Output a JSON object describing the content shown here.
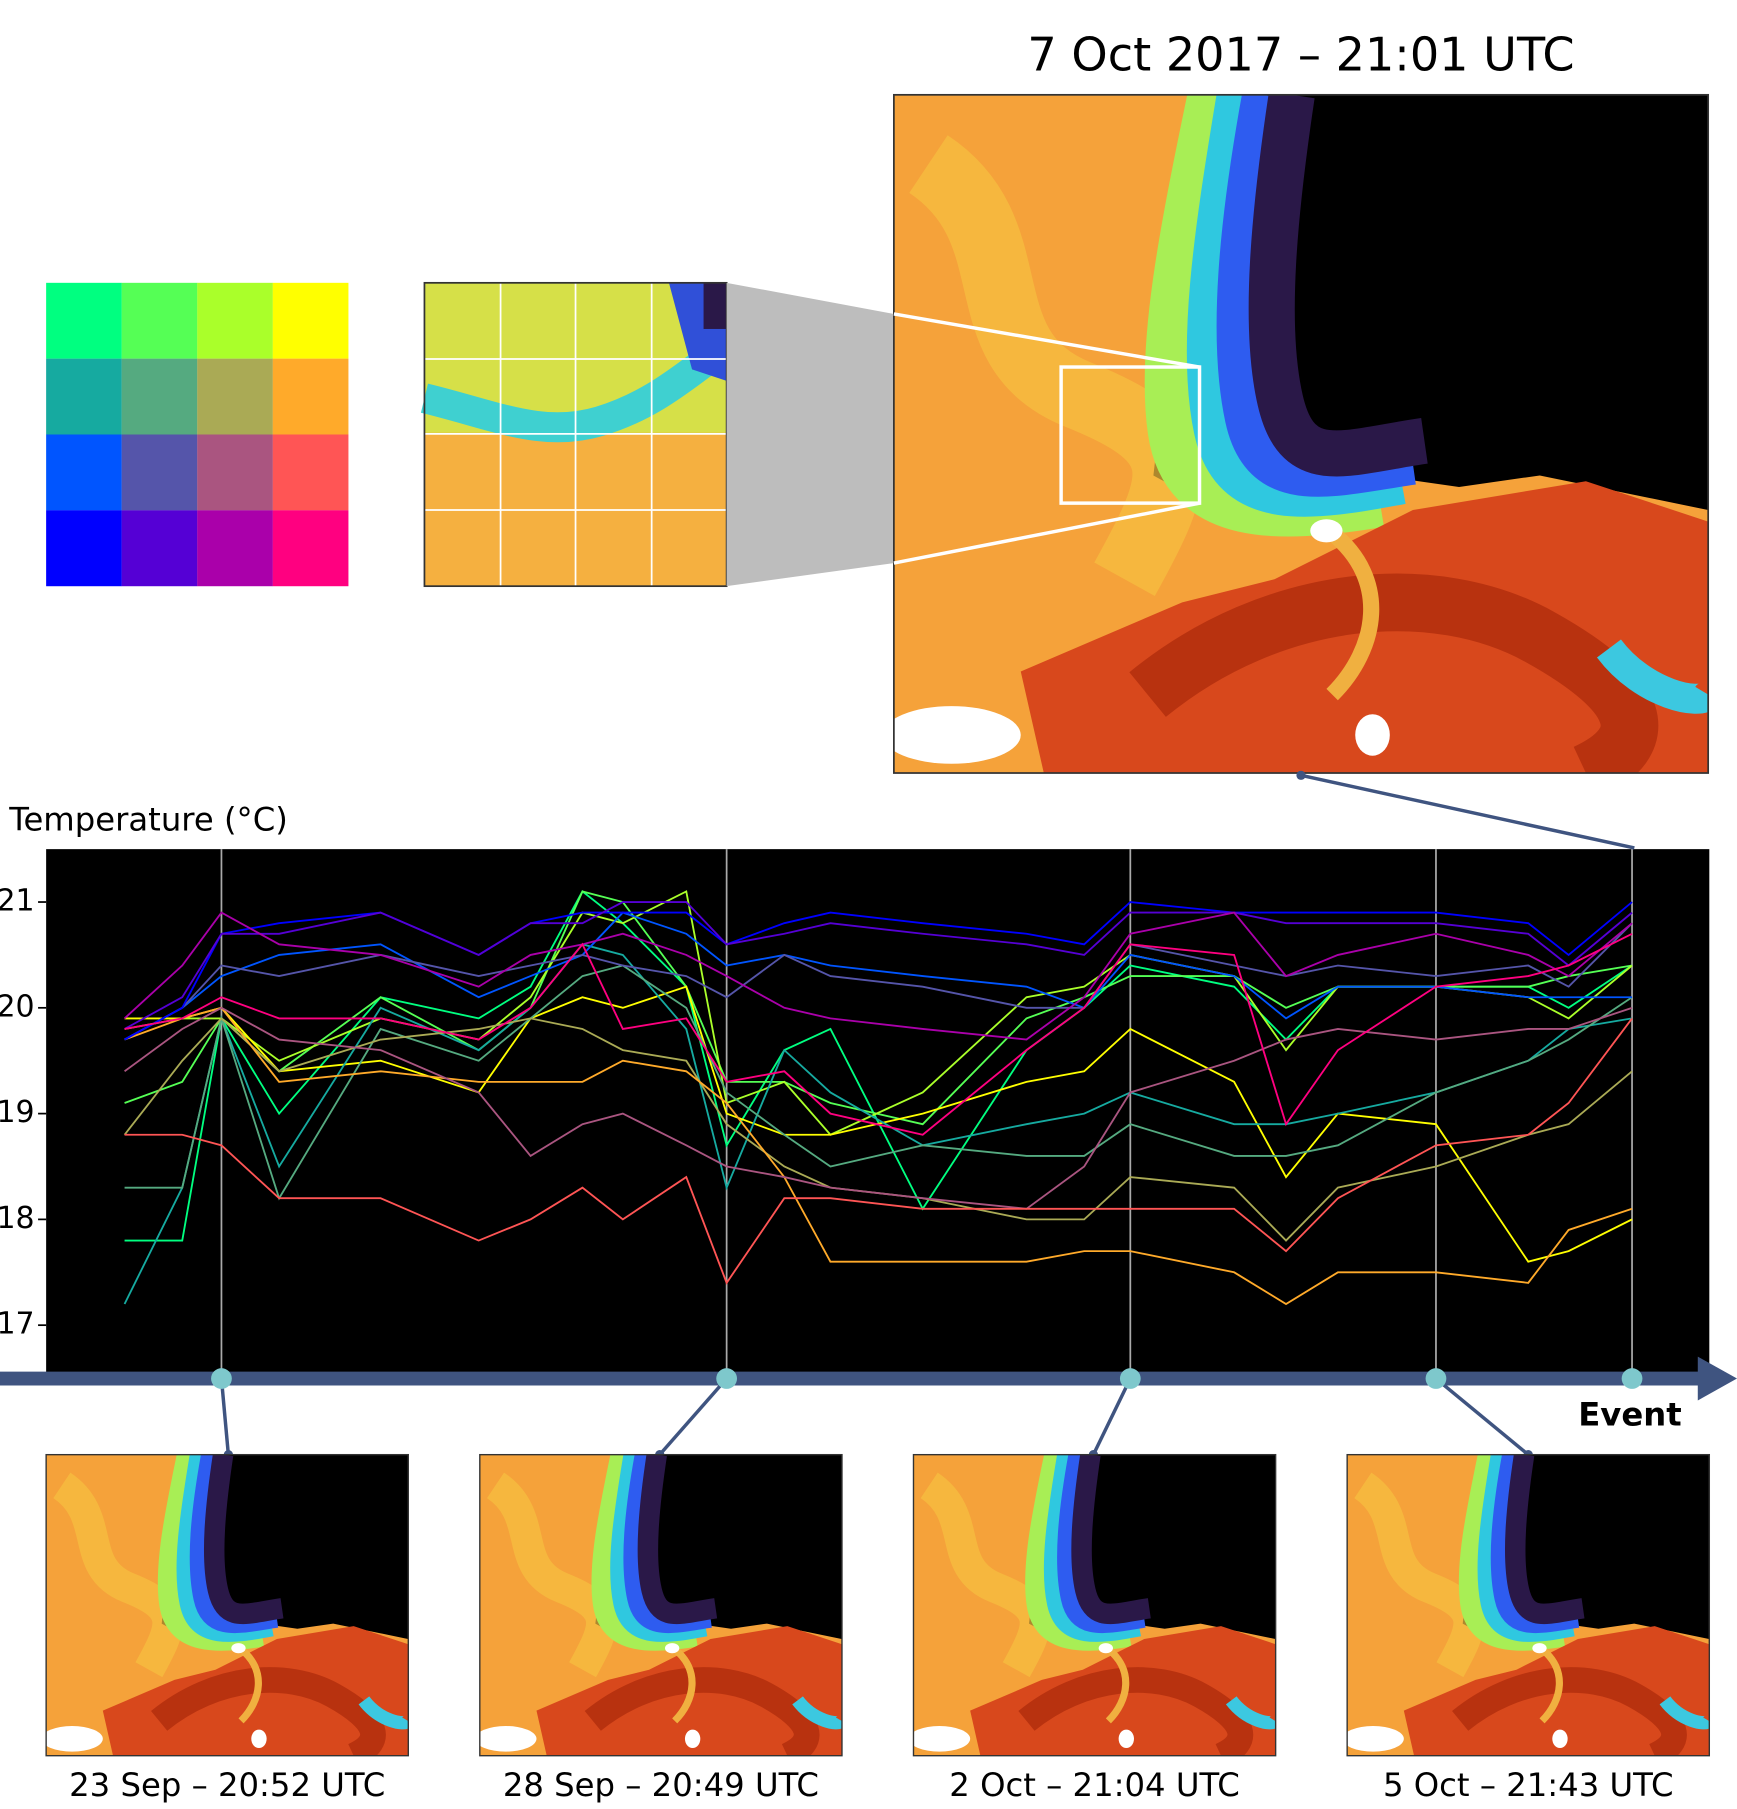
{
  "main_map": {
    "title": "7 Oct 2017 – 21:01 UTC"
  },
  "thumbnails": [
    {
      "label": "23 Sep – 20:52 UTC"
    },
    {
      "label": "28 Sep – 20:49 UTC"
    },
    {
      "label": "2 Oct – 21:04 UTC"
    },
    {
      "label": "5 Oct – 21:43 UTC"
    }
  ],
  "chart_data": {
    "type": "line",
    "y_label": "Temperature (°C)",
    "x_label": "Event",
    "ylim": [
      16.55,
      21.5
    ],
    "yticks": [
      17,
      18,
      19,
      20,
      21
    ],
    "grid": false,
    "categories": [
      null,
      null,
      null,
      null,
      null,
      null,
      null,
      null,
      null,
      null,
      null,
      null,
      null,
      null,
      null,
      null,
      null,
      null,
      null,
      null,
      null,
      null,
      null,
      null
    ],
    "series": [
      {
        "color": "#00ff80",
        "values": [
          17.8,
          17.8,
          19.9,
          19.0,
          20.1,
          19.9,
          20.2,
          21.1,
          20.8,
          20.2,
          18.7,
          19.6,
          19.8,
          18.1,
          19.6,
          20.0,
          20.4,
          20.2,
          19.7,
          20.2,
          20.2,
          20.2,
          20.0,
          20.4
        ]
      },
      {
        "color": "#55ff55",
        "values": [
          19.1,
          19.3,
          19.9,
          19.4,
          20.1,
          19.6,
          20.0,
          21.1,
          21.0,
          20.2,
          19.3,
          19.3,
          19.1,
          18.9,
          19.9,
          20.1,
          20.3,
          20.3,
          20.0,
          20.2,
          20.2,
          20.2,
          20.3,
          20.4
        ]
      },
      {
        "color": "#aaff2a",
        "values": [
          19.8,
          19.9,
          19.9,
          19.5,
          19.9,
          19.7,
          20.1,
          20.9,
          20.8,
          21.1,
          19.1,
          19.3,
          18.8,
          19.2,
          20.1,
          20.2,
          20.5,
          20.3,
          19.6,
          20.2,
          20.2,
          20.1,
          19.9,
          20.4
        ]
      },
      {
        "color": "#ffff00",
        "values": [
          19.9,
          19.9,
          20.0,
          19.4,
          19.5,
          19.2,
          19.9,
          20.1,
          20.0,
          20.2,
          19.0,
          18.8,
          18.8,
          19.0,
          19.3,
          19.4,
          19.8,
          19.3,
          18.4,
          19.0,
          18.9,
          17.6,
          17.7,
          18.0
        ]
      },
      {
        "color": "#16aaa0",
        "values": [
          17.2,
          18.3,
          19.9,
          18.5,
          20.0,
          19.6,
          20.0,
          20.6,
          20.5,
          19.8,
          18.3,
          19.6,
          19.2,
          18.7,
          18.9,
          19.0,
          19.2,
          18.9,
          18.9,
          19.0,
          19.2,
          19.5,
          19.8,
          19.9
        ]
      },
      {
        "color": "#55aa80",
        "values": [
          18.3,
          18.3,
          19.9,
          18.2,
          19.8,
          19.5,
          19.9,
          20.3,
          20.4,
          20.0,
          19.2,
          18.8,
          18.5,
          18.7,
          18.6,
          18.6,
          18.9,
          18.6,
          18.6,
          18.7,
          19.2,
          19.5,
          19.7,
          20.1
        ]
      },
      {
        "color": "#aaaa55",
        "values": [
          18.8,
          19.5,
          19.9,
          19.4,
          19.7,
          19.8,
          19.9,
          19.8,
          19.6,
          19.5,
          18.9,
          18.5,
          18.3,
          18.2,
          18.0,
          18.0,
          18.4,
          18.3,
          17.8,
          18.3,
          18.5,
          18.8,
          18.9,
          19.4
        ]
      },
      {
        "color": "#ffaa2a",
        "values": [
          19.7,
          19.9,
          20.0,
          19.3,
          19.4,
          19.3,
          19.3,
          19.3,
          19.5,
          19.4,
          19.1,
          18.4,
          17.6,
          17.6,
          17.6,
          17.7,
          17.7,
          17.5,
          17.2,
          17.5,
          17.5,
          17.4,
          17.9,
          18.1
        ]
      },
      {
        "color": "#0055ff",
        "values": [
          19.7,
          20.0,
          20.3,
          20.5,
          20.6,
          20.1,
          20.3,
          20.5,
          20.9,
          20.7,
          20.4,
          20.5,
          20.4,
          20.3,
          20.2,
          20.0,
          20.5,
          20.3,
          19.9,
          20.2,
          20.2,
          20.1,
          20.1,
          20.1
        ]
      },
      {
        "color": "#5555aa",
        "values": [
          19.7,
          20.0,
          20.4,
          20.3,
          20.5,
          20.3,
          20.4,
          20.5,
          20.4,
          20.3,
          20.1,
          20.5,
          20.3,
          20.2,
          20.0,
          20.0,
          20.6,
          20.4,
          20.3,
          20.4,
          20.3,
          20.4,
          20.2,
          20.8
        ]
      },
      {
        "color": "#aa5580",
        "values": [
          19.4,
          19.8,
          20.0,
          19.7,
          19.6,
          19.2,
          18.6,
          18.9,
          19.0,
          18.7,
          18.5,
          18.4,
          18.3,
          18.2,
          18.1,
          18.5,
          19.2,
          19.5,
          19.7,
          19.8,
          19.7,
          19.8,
          19.8,
          20.0
        ]
      },
      {
        "color": "#ff5555",
        "values": [
          18.8,
          18.8,
          18.7,
          18.2,
          18.2,
          17.8,
          18.0,
          18.3,
          18.0,
          18.4,
          17.4,
          18.2,
          18.2,
          18.1,
          18.1,
          18.1,
          18.1,
          18.1,
          17.7,
          18.2,
          18.7,
          18.8,
          19.1,
          19.9
        ]
      },
      {
        "color": "#0000ff",
        "values": [
          19.7,
          20.0,
          20.7,
          20.8,
          20.9,
          20.5,
          20.8,
          20.9,
          20.9,
          20.9,
          20.6,
          20.8,
          20.9,
          20.8,
          20.7,
          20.6,
          21.0,
          20.9,
          20.9,
          20.9,
          20.9,
          20.8,
          20.5,
          21.0
        ]
      },
      {
        "color": "#5500d5",
        "values": [
          19.8,
          20.1,
          20.7,
          20.7,
          20.9,
          20.5,
          20.8,
          20.8,
          21.0,
          21.0,
          20.6,
          20.7,
          20.8,
          20.7,
          20.6,
          20.5,
          20.9,
          20.9,
          20.8,
          20.8,
          20.8,
          20.7,
          20.4,
          20.9
        ]
      },
      {
        "color": "#aa00aa",
        "values": [
          19.9,
          20.4,
          20.9,
          20.6,
          20.5,
          20.2,
          20.5,
          20.6,
          20.7,
          20.5,
          20.3,
          20.0,
          19.9,
          19.8,
          19.7,
          20.1,
          20.7,
          20.9,
          20.3,
          20.5,
          20.7,
          20.5,
          20.3,
          20.8
        ]
      },
      {
        "color": "#ff0080",
        "values": [
          19.8,
          19.9,
          20.1,
          19.9,
          19.9,
          19.7,
          20.0,
          20.6,
          19.8,
          19.9,
          19.3,
          19.4,
          19.0,
          18.8,
          19.6,
          20.0,
          20.6,
          20.5,
          18.9,
          19.6,
          20.2,
          20.3,
          20.4,
          20.7
        ]
      }
    ]
  }
}
